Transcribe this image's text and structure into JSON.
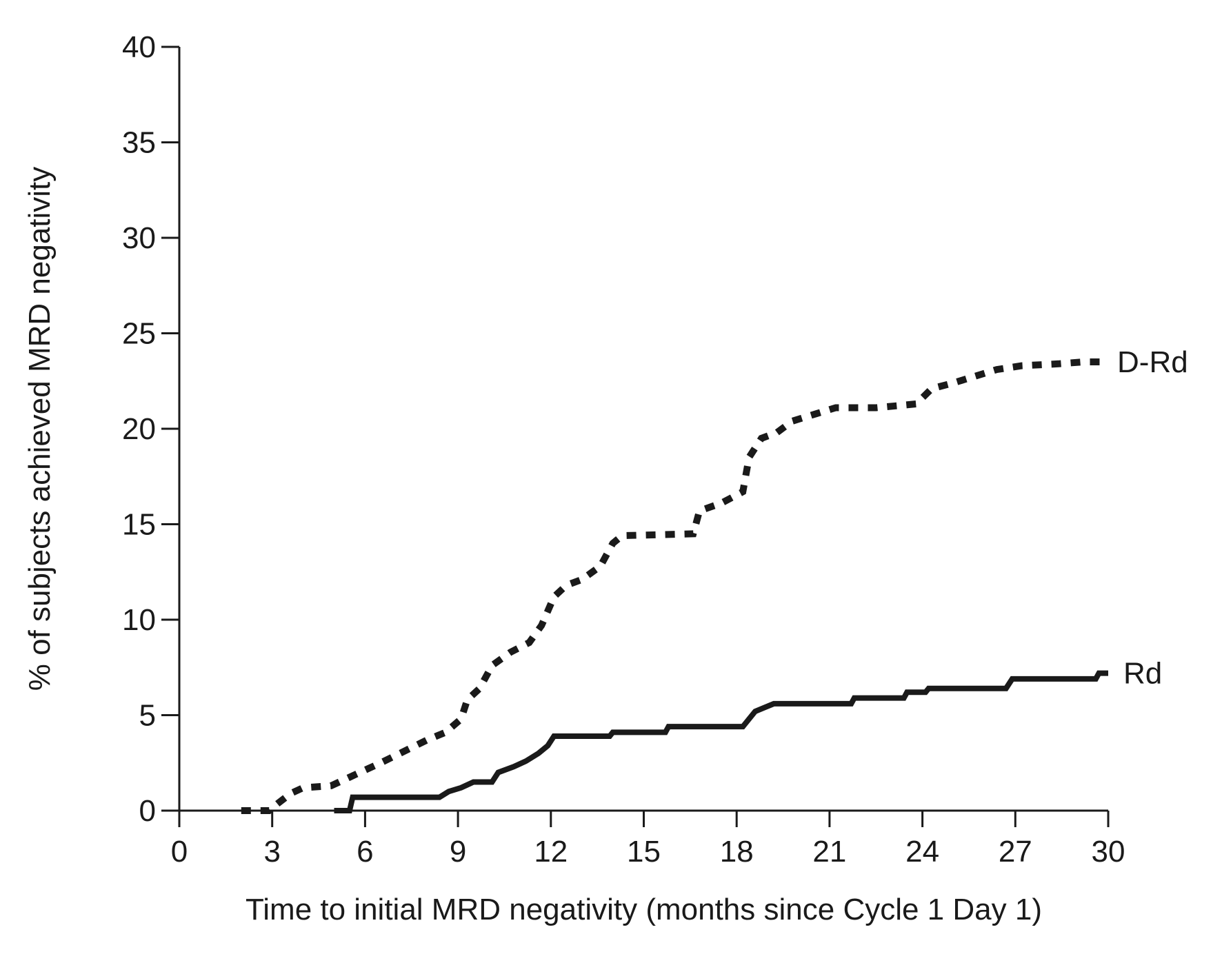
{
  "chart_data": {
    "type": "line",
    "step": true,
    "xlabel": "Time to initial MRD negativity (months since Cycle 1 Day 1)",
    "ylabel": "% of subjects achieved MRD negativity",
    "xlim": [
      0,
      30
    ],
    "ylim": [
      0,
      40
    ],
    "xticks": [
      0,
      3,
      6,
      9,
      12,
      15,
      18,
      21,
      24,
      27,
      30
    ],
    "yticks": [
      0,
      5,
      10,
      15,
      20,
      25,
      30,
      35,
      40
    ],
    "grid": false,
    "legend": "direct labels at line ends",
    "series": [
      {
        "name": "D-Rd",
        "style": "dashed",
        "color": "#1a1a1a",
        "points": [
          [
            2.0,
            0.0
          ],
          [
            2.9,
            0.0
          ],
          [
            3.2,
            0.4
          ],
          [
            3.6,
            0.9
          ],
          [
            4.0,
            1.2
          ],
          [
            4.9,
            1.3
          ],
          [
            5.3,
            1.6
          ],
          [
            5.7,
            1.9
          ],
          [
            6.1,
            2.2
          ],
          [
            6.5,
            2.5
          ],
          [
            7.0,
            2.9
          ],
          [
            7.5,
            3.3
          ],
          [
            8.0,
            3.7
          ],
          [
            8.6,
            4.1
          ],
          [
            9.1,
            4.8
          ],
          [
            9.3,
            5.8
          ],
          [
            9.7,
            6.4
          ],
          [
            10.1,
            7.6
          ],
          [
            10.7,
            8.3
          ],
          [
            11.3,
            8.8
          ],
          [
            11.7,
            9.7
          ],
          [
            12.1,
            11.2
          ],
          [
            12.5,
            11.8
          ],
          [
            13.0,
            12.1
          ],
          [
            13.6,
            12.8
          ],
          [
            14.0,
            14.0
          ],
          [
            14.3,
            14.4
          ],
          [
            16.6,
            14.5
          ],
          [
            16.8,
            15.7
          ],
          [
            17.5,
            16.1
          ],
          [
            18.2,
            16.7
          ],
          [
            18.4,
            18.5
          ],
          [
            18.8,
            19.5
          ],
          [
            19.3,
            19.8
          ],
          [
            19.8,
            20.4
          ],
          [
            20.6,
            20.8
          ],
          [
            21.2,
            21.1
          ],
          [
            22.5,
            21.1
          ],
          [
            23.8,
            21.3
          ],
          [
            24.3,
            22.1
          ],
          [
            25.0,
            22.4
          ],
          [
            25.6,
            22.7
          ],
          [
            26.4,
            23.1
          ],
          [
            27.2,
            23.3
          ],
          [
            28.4,
            23.4
          ],
          [
            29.2,
            23.5
          ],
          [
            29.8,
            23.5
          ]
        ]
      },
      {
        "name": "Rd",
        "style": "solid",
        "color": "#1a1a1a",
        "points": [
          [
            5.0,
            0.0
          ],
          [
            5.5,
            0.0
          ],
          [
            5.6,
            0.7
          ],
          [
            8.4,
            0.7
          ],
          [
            8.7,
            1.0
          ],
          [
            9.1,
            1.2
          ],
          [
            9.5,
            1.5
          ],
          [
            10.1,
            1.5
          ],
          [
            10.3,
            2.0
          ],
          [
            10.8,
            2.3
          ],
          [
            11.2,
            2.6
          ],
          [
            11.6,
            3.0
          ],
          [
            11.9,
            3.4
          ],
          [
            12.1,
            3.9
          ],
          [
            13.9,
            3.9
          ],
          [
            14.0,
            4.1
          ],
          [
            15.7,
            4.1
          ],
          [
            15.8,
            4.4
          ],
          [
            18.2,
            4.4
          ],
          [
            18.4,
            4.8
          ],
          [
            18.6,
            5.2
          ],
          [
            18.9,
            5.4
          ],
          [
            19.2,
            5.6
          ],
          [
            21.7,
            5.6
          ],
          [
            21.8,
            5.9
          ],
          [
            23.4,
            5.9
          ],
          [
            23.5,
            6.2
          ],
          [
            24.1,
            6.2
          ],
          [
            24.2,
            6.4
          ],
          [
            26.7,
            6.4
          ],
          [
            26.9,
            6.9
          ],
          [
            29.6,
            6.9
          ],
          [
            29.7,
            7.2
          ],
          [
            30.0,
            7.2
          ]
        ]
      }
    ]
  }
}
